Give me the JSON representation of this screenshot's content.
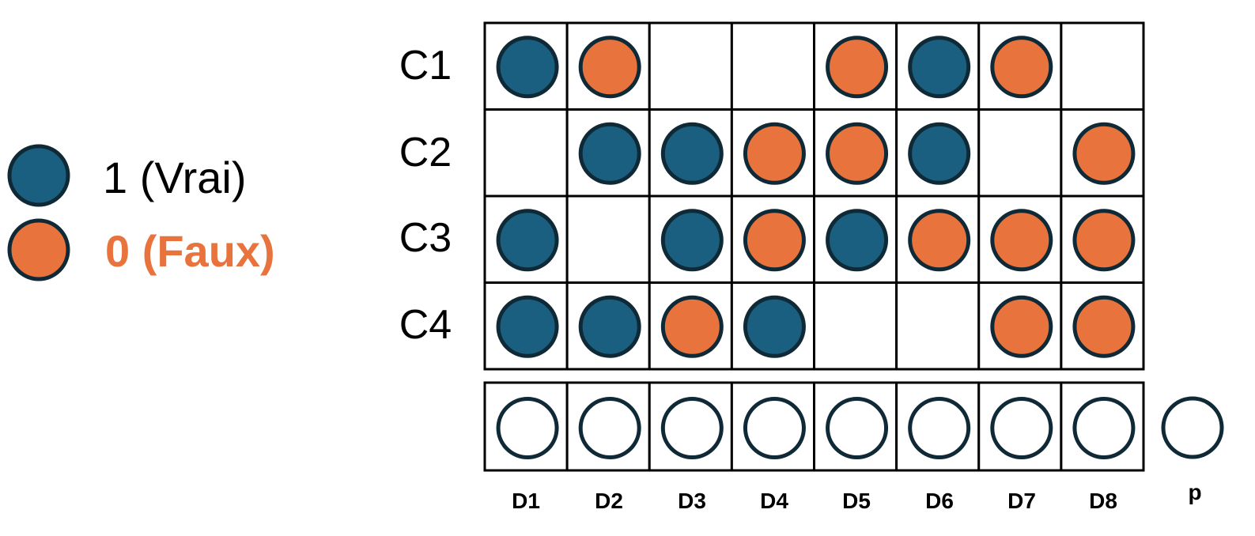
{
  "legend": {
    "true_label": "1 (Vrai)",
    "false_label": "0 (Faux)"
  },
  "colors": {
    "true_fill": "#1A5F7F",
    "false_fill": "#E8733D",
    "outline": "#0F2A36",
    "false_text": "#E8733D",
    "true_text": "#000000"
  },
  "rows": [
    "C1",
    "C2",
    "C3",
    "C4"
  ],
  "columns": [
    "D1",
    "D2",
    "D3",
    "D4",
    "D5",
    "D6",
    "D7",
    "D8"
  ],
  "extra_column": "p",
  "grid": [
    [
      1,
      0,
      null,
      null,
      0,
      1,
      0,
      null
    ],
    [
      null,
      1,
      1,
      0,
      0,
      1,
      null,
      0
    ],
    [
      1,
      null,
      1,
      0,
      1,
      0,
      0,
      0
    ],
    [
      1,
      1,
      0,
      1,
      null,
      null,
      0,
      0
    ]
  ]
}
